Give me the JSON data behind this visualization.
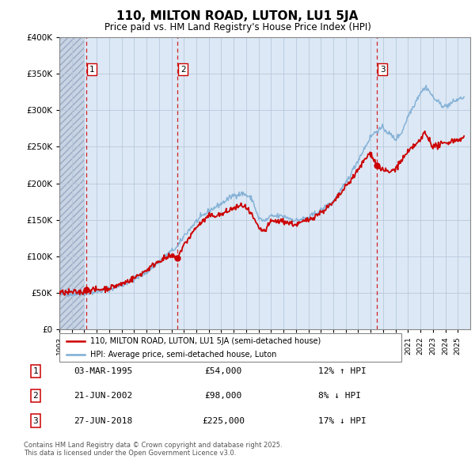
{
  "title": "110, MILTON ROAD, LUTON, LU1 5JA",
  "subtitle": "Price paid vs. HM Land Registry's House Price Index (HPI)",
  "legend_line1": "110, MILTON ROAD, LUTON, LU1 5JA (semi-detached house)",
  "legend_line2": "HPI: Average price, semi-detached house, Luton",
  "footer": "Contains HM Land Registry data © Crown copyright and database right 2025.\nThis data is licensed under the Open Government Licence v3.0.",
  "sales": [
    {
      "num": 1,
      "date": "03-MAR-1995",
      "price": 54000,
      "hpi_diff": "12% ↑ HPI",
      "year": 1995.17
    },
    {
      "num": 2,
      "date": "21-JUN-2002",
      "price": 98000,
      "hpi_diff": "8% ↓ HPI",
      "year": 2002.47
    },
    {
      "num": 3,
      "date": "27-JUN-2018",
      "price": 225000,
      "hpi_diff": "17% ↓ HPI",
      "year": 2018.49
    }
  ],
  "hpi_color": "#7dadd4",
  "sale_color": "#cc0000",
  "bg_color": "#dce8f5",
  "hatch_bg_color": "#d0d8e8",
  "grid_color": "#b8c8dc",
  "ylim": [
    0,
    400000
  ],
  "ytick_max": 400000,
  "ytick_step": 50000,
  "xlim_start": 1993,
  "xlim_end": 2026,
  "sale_dot_size": 35
}
